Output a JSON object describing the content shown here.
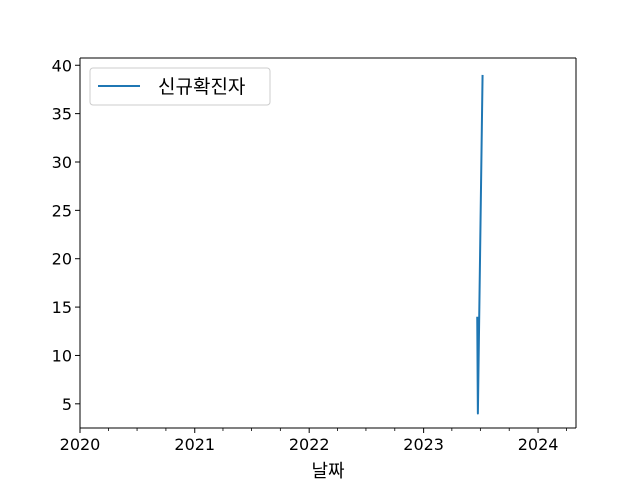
{
  "chart_data": {
    "type": "line",
    "title": "",
    "xlabel": "날짜",
    "ylabel": "",
    "xlim": [
      "2020-01-01",
      "2024-05-01"
    ],
    "ylim": [
      2.5,
      40.75
    ],
    "x_ticks": [
      "2020-01-01",
      "2021-01-01",
      "2022-01-01",
      "2023-01-01",
      "2024-01-01"
    ],
    "x_tick_labels": [
      "2020",
      "2021",
      "2022",
      "2023",
      "2024"
    ],
    "y_ticks": [
      5,
      10,
      15,
      20,
      25,
      30,
      35,
      40
    ],
    "y_tick_labels": [
      "5",
      "10",
      "15",
      "20",
      "25",
      "30",
      "35",
      "40"
    ],
    "grid": false,
    "legend_position": "top-left",
    "series": [
      {
        "name": "신규확진자",
        "color": "#1f77b4",
        "points": [
          {
            "x": "2023-06-21",
            "y": 14
          },
          {
            "x": "2023-06-23",
            "y": 4
          },
          {
            "x": "2023-07-08",
            "y": 39
          }
        ]
      }
    ]
  }
}
